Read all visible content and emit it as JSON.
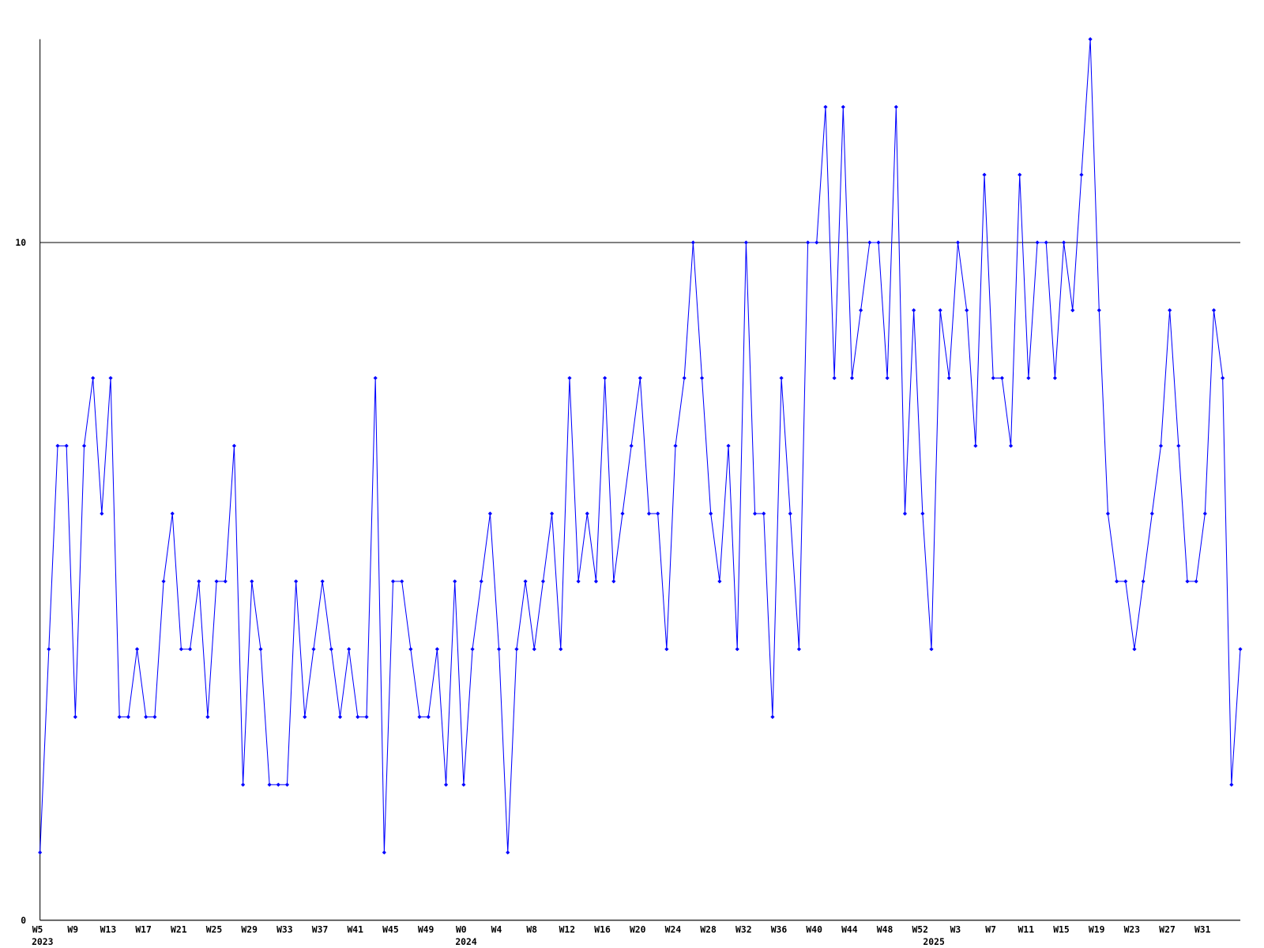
{
  "chart_data": {
    "type": "line",
    "categories": [
      "W5",
      null,
      null,
      null,
      "W9",
      null,
      null,
      null,
      "W13",
      null,
      null,
      null,
      "W17",
      null,
      null,
      null,
      "W21",
      null,
      null,
      null,
      "W25",
      null,
      null,
      null,
      "W29",
      null,
      null,
      null,
      "W33",
      null,
      null,
      null,
      "W37",
      null,
      null,
      null,
      "W41",
      null,
      null,
      null,
      "W45",
      null,
      null,
      null,
      "W49",
      null,
      null,
      null,
      "W0",
      null,
      null,
      null,
      "W4",
      null,
      null,
      null,
      "W8",
      null,
      null,
      null,
      "W12",
      null,
      null,
      null,
      "W16",
      null,
      null,
      null,
      "W20",
      null,
      null,
      null,
      "W24",
      null,
      null,
      null,
      "W28",
      null,
      null,
      null,
      "W32",
      null,
      null,
      null,
      "W36",
      null,
      null,
      null,
      "W40",
      null,
      null,
      null,
      "W44",
      null,
      null,
      null,
      "W48",
      null,
      null,
      null,
      "W52",
      null,
      null,
      null,
      "W3",
      null,
      null,
      null,
      "W7",
      null,
      null,
      null,
      "W11",
      null,
      null,
      null,
      "W15",
      null,
      null,
      null,
      "W19",
      null,
      null,
      null,
      "W23",
      null,
      null,
      null,
      "W27",
      null,
      null,
      null,
      "W31",
      null,
      null,
      null,
      null
    ],
    "x_groups": [
      "2023",
      null,
      null,
      null,
      null,
      null,
      null,
      null,
      null,
      null,
      null,
      null,
      null,
      null,
      null,
      null,
      null,
      null,
      null,
      null,
      null,
      null,
      null,
      null,
      null,
      null,
      null,
      null,
      null,
      null,
      null,
      null,
      null,
      null,
      null,
      null,
      null,
      null,
      null,
      null,
      null,
      null,
      null,
      null,
      null,
      null,
      null,
      null,
      "2024",
      null,
      null,
      null,
      null,
      null,
      null,
      null,
      null,
      null,
      null,
      null,
      null,
      null,
      null,
      null,
      null,
      null,
      null,
      null,
      null,
      null,
      null,
      null,
      null,
      null,
      null,
      null,
      null,
      null,
      null,
      null,
      null,
      null,
      null,
      null,
      null,
      null,
      null,
      null,
      null,
      null,
      null,
      null,
      null,
      null,
      null,
      null,
      null,
      null,
      null,
      null,
      null,
      "2025",
      null,
      null,
      null,
      null,
      null,
      null,
      null,
      null,
      null,
      null,
      null,
      null,
      null,
      null,
      null,
      null,
      null,
      null,
      null,
      null,
      null,
      null,
      null,
      null,
      null,
      null,
      null,
      null,
      null,
      null,
      null,
      null,
      null,
      null,
      null
    ],
    "series": [
      {
        "color": "#0000ff",
        "values": [
          1,
          4,
          7,
          7,
          3,
          7,
          8,
          6,
          8,
          3,
          3,
          4,
          3,
          3,
          5,
          6,
          4,
          4,
          5,
          3,
          5,
          5,
          7,
          2,
          5,
          4,
          2,
          2,
          2,
          5,
          3,
          4,
          5,
          4,
          3,
          4,
          3,
          3,
          8,
          1,
          5,
          5,
          4,
          3,
          3,
          4,
          2,
          5,
          2,
          4,
          5,
          6,
          4,
          1,
          4,
          5,
          4,
          5,
          6,
          4,
          8,
          5,
          6,
          5,
          8,
          5,
          6,
          7,
          8,
          6,
          6,
          4,
          7,
          8,
          10,
          8,
          6,
          5,
          7,
          4,
          10,
          6,
          6,
          3,
          8,
          6,
          4,
          10,
          10,
          12,
          8,
          12,
          8,
          9,
          10,
          10,
          8,
          12,
          6,
          9,
          6,
          4,
          9,
          8,
          10,
          9,
          7,
          11,
          8,
          8,
          7,
          11,
          8,
          10,
          10,
          8,
          10,
          9,
          11,
          13,
          9,
          6,
          5,
          5,
          4,
          5,
          6,
          7,
          9,
          7,
          5,
          5,
          6,
          9,
          8,
          2,
          4
        ]
      }
    ],
    "ylim": [
      0,
      13
    ],
    "yticks": [
      0,
      10
    ],
    "grid": true
  }
}
